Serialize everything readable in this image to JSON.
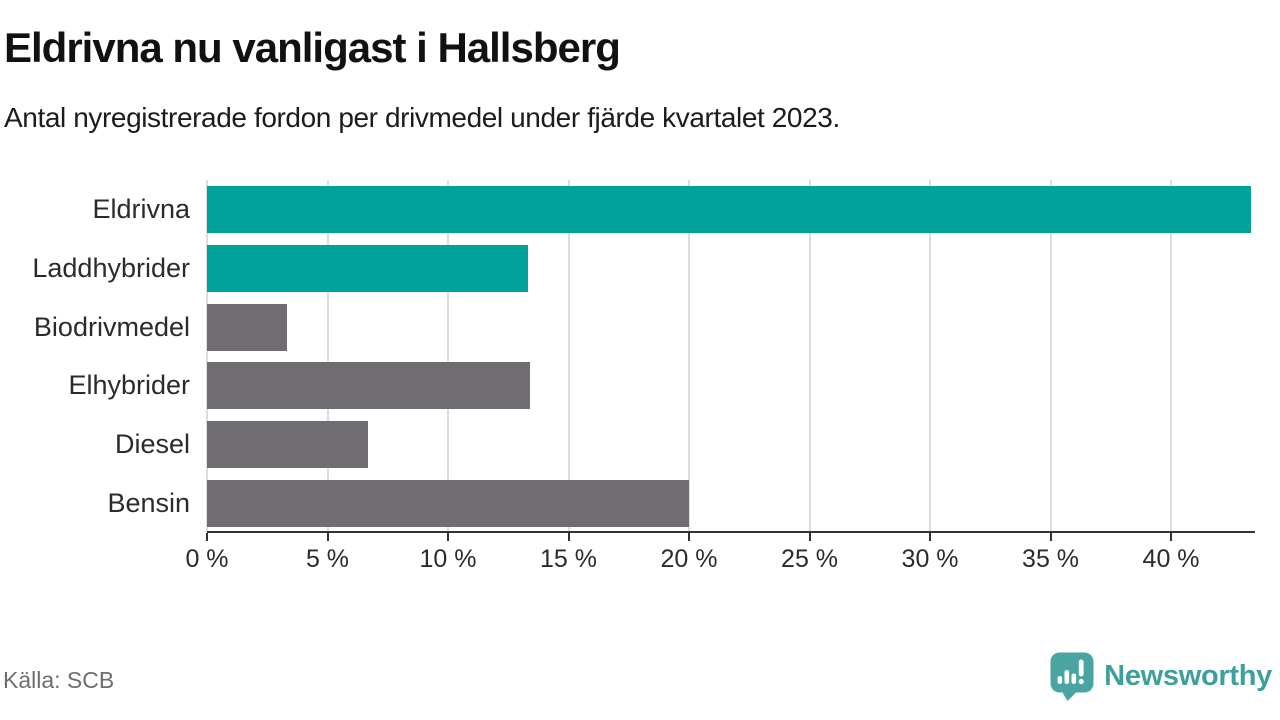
{
  "header": {
    "title": "Eldrivna nu vanligast i Hallsberg",
    "subtitle": "Antal nyregistrerade fordon per drivmedel under fjärde kvartalet 2023."
  },
  "chart_data": {
    "type": "bar",
    "orientation": "horizontal",
    "title": "Eldrivna nu vanligast i Hallsberg",
    "subtitle": "Antal nyregistrerade fordon per drivmedel under fjärde kvartalet 2023.",
    "categories": [
      "Eldrivna",
      "Laddhybrider",
      "Biodrivmedel",
      "Elhybrider",
      "Diesel",
      "Bensin"
    ],
    "values": [
      43.3,
      13.3,
      3.3,
      13.4,
      6.7,
      20.0
    ],
    "unit": "%",
    "bar_colors": [
      "#00a29b",
      "#00a29b",
      "#6f6d71",
      "#6f6d71",
      "#6f6d71",
      "#6f6d71"
    ],
    "x_tick_values": [
      0,
      5,
      10,
      15,
      20,
      25,
      30,
      35,
      40
    ],
    "x_tick_labels": [
      "0 %",
      "5 %",
      "10 %",
      "15 %",
      "20 %",
      "25 %",
      "30 %",
      "35 %",
      "40 %"
    ],
    "xlim": [
      0,
      43.4
    ],
    "grid": "vertical",
    "legend": "none"
  },
  "footer": {
    "source": "Källa: SCB",
    "brand": "Newsworthy"
  },
  "colors": {
    "accent_teal": "#00a29b",
    "neutral_gray": "#6f6d71",
    "gridline": "#dddddd",
    "axis": "#333333",
    "logo_teal": "#4aa5a2"
  }
}
